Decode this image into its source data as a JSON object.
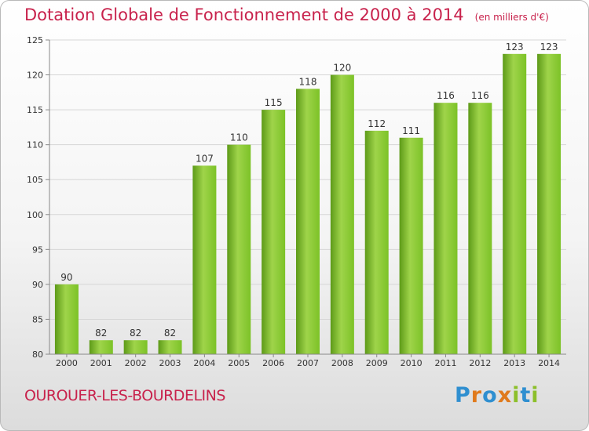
{
  "header": {
    "title": "Dotation Globale de Fonctionnement de 2000 à 2014",
    "subtitle": "(en milliers d'€)"
  },
  "commune": "OUROUER-LES-BOURDELINS",
  "logo": {
    "letters": [
      "P",
      "r",
      "o",
      "x",
      "i",
      "t",
      "i"
    ],
    "colors": [
      "#2f8fd0",
      "#e07a1c",
      "#2f8fd0",
      "#e07a1c",
      "#8cbf2a",
      "#2f8fd0",
      "#8cbf2a"
    ]
  },
  "colors": {
    "bar": "#7cc227",
    "bar_light": "#9fd44a",
    "bar_dark": "#5d9a18",
    "title": "#c8224c"
  },
  "chart_data": {
    "type": "bar",
    "categories": [
      "2000",
      "2001",
      "2002",
      "2003",
      "2004",
      "2005",
      "2006",
      "2007",
      "2008",
      "2009",
      "2010",
      "2011",
      "2012",
      "2013",
      "2014"
    ],
    "values": [
      90,
      82,
      82,
      82,
      107,
      110,
      115,
      118,
      120,
      112,
      111,
      116,
      116,
      123,
      123
    ],
    "data_labels": [
      "90",
      "82",
      "82",
      "82",
      "107",
      "110",
      "115",
      "118",
      "120",
      "112",
      "111",
      "116",
      "116",
      "123",
      "123"
    ],
    "ylim": [
      80,
      125
    ],
    "yticks": [
      80,
      85,
      90,
      95,
      100,
      105,
      110,
      115,
      120,
      125
    ],
    "grid": true
  }
}
